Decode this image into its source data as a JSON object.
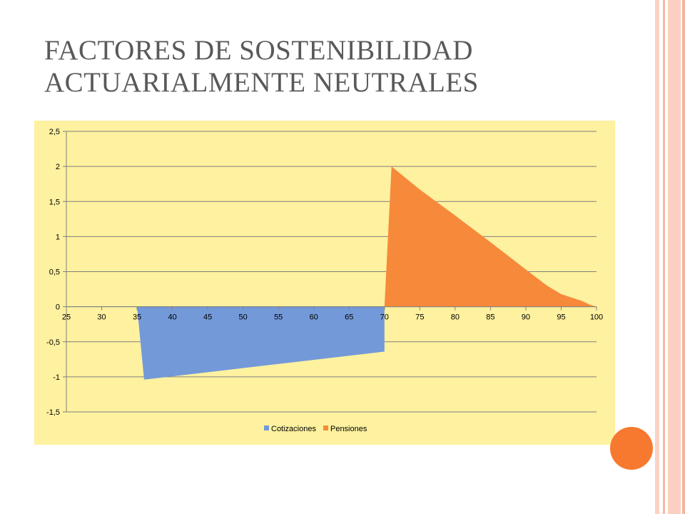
{
  "slide": {
    "title_line1": "FACTORES DE SOSTENIBILIDAD",
    "title_line2": "ACTUARIALMENTE NEUTRALES"
  },
  "colors": {
    "panel_bg": "#fef19f",
    "cotizaciones": "#7399d9",
    "pensiones": "#f7893b",
    "accent_dot": "#f7792f",
    "stripes": "#f9c6b6"
  },
  "chart_data": {
    "type": "area",
    "title": "",
    "xlabel": "",
    "ylabel": "",
    "xlim": [
      25,
      100
    ],
    "ylim": [
      -1.5,
      2.5
    ],
    "x_ticks": [
      "25",
      "30",
      "35",
      "40",
      "45",
      "50",
      "55",
      "60",
      "65",
      "70",
      "75",
      "80",
      "85",
      "90",
      "95",
      "100"
    ],
    "y_ticks": [
      "2,5",
      "2",
      "1,5",
      "1",
      "0,5",
      "0",
      "-0,5",
      "-1",
      "-1,5"
    ],
    "grid": true,
    "legend_position": "bottom",
    "series": [
      {
        "name": "Cotizaciones",
        "x": [
          35,
          36,
          70,
          70
        ],
        "values": [
          0,
          -1.04,
          -0.64,
          0
        ]
      },
      {
        "name": "Pensiones",
        "x": [
          70,
          71,
          75,
          80,
          85,
          90,
          93,
          95,
          98,
          99,
          100
        ],
        "values": [
          0,
          2.0,
          1.67,
          1.3,
          0.92,
          0.53,
          0.3,
          0.18,
          0.08,
          0.03,
          0
        ]
      }
    ]
  }
}
